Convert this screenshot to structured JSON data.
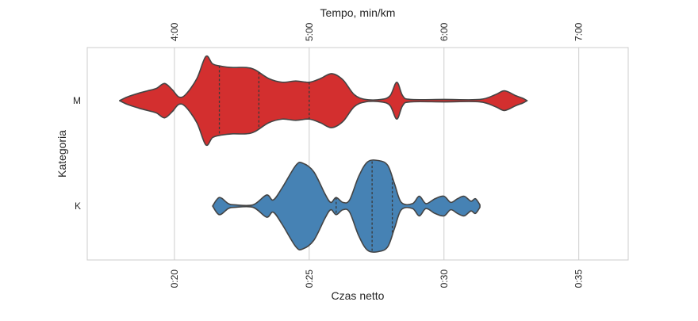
{
  "chart_data": {
    "type": "violin",
    "title": "",
    "xlabel": "Czas netto",
    "ylabel": "Kategoria",
    "top_xlabel": "Tempo, min/km",
    "xlim": [
      1006,
      2210
    ],
    "x_ticks": [
      1200,
      1500,
      1800,
      2100
    ],
    "x_tick_labels": [
      "0:20",
      "0:25",
      "0:30",
      "0:35"
    ],
    "top_ticks": [
      1200,
      1500,
      1800,
      2100
    ],
    "top_tick_labels": [
      "4:00",
      "5:00",
      "6:00",
      "7:00"
    ],
    "categories": [
      "M",
      "K"
    ],
    "grid": true,
    "legend": "none",
    "series": [
      {
        "category": "M",
        "color": "#d32f2f",
        "profile": [
          [
            1078,
            0.0
          ],
          [
            1095,
            0.03
          ],
          [
            1120,
            0.06
          ],
          [
            1140,
            0.08
          ],
          [
            1160,
            0.1
          ],
          [
            1178,
            0.14
          ],
          [
            1195,
            0.09
          ],
          [
            1210,
            0.03
          ],
          [
            1225,
            0.05
          ],
          [
            1250,
            0.18
          ],
          [
            1270,
            0.36
          ],
          [
            1285,
            0.3
          ],
          [
            1305,
            0.28
          ],
          [
            1330,
            0.27
          ],
          [
            1360,
            0.27
          ],
          [
            1380,
            0.25
          ],
          [
            1410,
            0.18
          ],
          [
            1440,
            0.15
          ],
          [
            1470,
            0.16
          ],
          [
            1500,
            0.15
          ],
          [
            1525,
            0.18
          ],
          [
            1550,
            0.22
          ],
          [
            1575,
            0.17
          ],
          [
            1600,
            0.05
          ],
          [
            1625,
            0.01
          ],
          [
            1660,
            0.01
          ],
          [
            1680,
            0.04
          ],
          [
            1695,
            0.15
          ],
          [
            1708,
            0.04
          ],
          [
            1725,
            0.01
          ],
          [
            1800,
            0.01
          ],
          [
            1880,
            0.01
          ],
          [
            1915,
            0.05
          ],
          [
            1935,
            0.08
          ],
          [
            1960,
            0.04
          ],
          [
            1975,
            0.02
          ],
          [
            1985,
            0.0
          ]
        ],
        "quartiles": [
          1300,
          1388,
          1500
        ]
      },
      {
        "category": "K",
        "color": "#4682b4",
        "profile": [
          [
            1285,
            0.0
          ],
          [
            1300,
            0.07
          ],
          [
            1320,
            0.02
          ],
          [
            1335,
            0.01
          ],
          [
            1375,
            0.01
          ],
          [
            1405,
            0.09
          ],
          [
            1420,
            0.05
          ],
          [
            1440,
            0.15
          ],
          [
            1470,
            0.33
          ],
          [
            1485,
            0.35
          ],
          [
            1510,
            0.28
          ],
          [
            1535,
            0.1
          ],
          [
            1548,
            0.03
          ],
          [
            1560,
            0.07
          ],
          [
            1575,
            0.03
          ],
          [
            1590,
            0.05
          ],
          [
            1610,
            0.24
          ],
          [
            1630,
            0.36
          ],
          [
            1655,
            0.37
          ],
          [
            1675,
            0.33
          ],
          [
            1690,
            0.18
          ],
          [
            1705,
            0.03
          ],
          [
            1730,
            0.02
          ],
          [
            1745,
            0.08
          ],
          [
            1760,
            0.02
          ],
          [
            1780,
            0.06
          ],
          [
            1800,
            0.08
          ],
          [
            1815,
            0.03
          ],
          [
            1830,
            0.06
          ],
          [
            1845,
            0.08
          ],
          [
            1860,
            0.04
          ],
          [
            1870,
            0.06
          ],
          [
            1880,
            0.01
          ]
        ],
        "quartiles": [
          1560,
          1640,
          1685
        ]
      }
    ]
  }
}
